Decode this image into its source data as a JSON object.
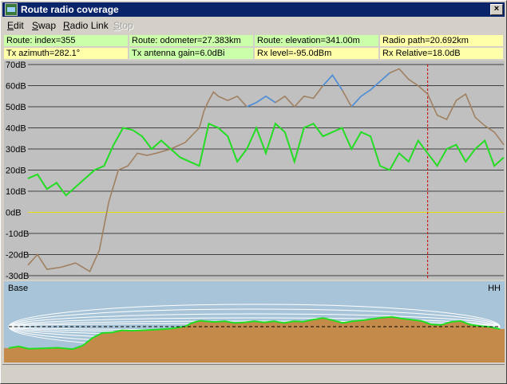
{
  "window": {
    "title": "Route radio coverage",
    "close_glyph": "×"
  },
  "menu": [
    {
      "pre": "",
      "ul": "E",
      "post": "dit",
      "disabled": false
    },
    {
      "pre": "",
      "ul": "S",
      "post": "wap",
      "disabled": false
    },
    {
      "pre": "",
      "ul": "R",
      "post": "adio Link",
      "disabled": false
    },
    {
      "pre": "",
      "ul": "S",
      "post": "top",
      "disabled": true
    }
  ],
  "info": {
    "index": "Route: index=355",
    "odometer": "Route: odometer=27.383km",
    "elevation": "Route: elevation=341.00m",
    "radio_path": "Radio path=20.692km",
    "tx_azimuth": "Tx azimuth=282.1°",
    "tx_gain": "Tx antenna gain=6.0dBi",
    "rx_level": "Rx level=-95.0dBm",
    "rx_relative": "Rx Relative=18.0dB"
  },
  "chart_data": {
    "type": "line",
    "ylim": [
      -30,
      70
    ],
    "yticks": [
      "70dB",
      "60dB",
      "50dB",
      "40dB",
      "30dB",
      "20dB",
      "10dB",
      "0dB",
      "-10dB",
      "-20dB",
      "-30dB"
    ],
    "zero_line_color": "#e8e000",
    "cursor_x": 0.84,
    "series": [
      {
        "color": "#a08060",
        "highlight_color": "#4a90e0",
        "x": [
          0,
          0.02,
          0.04,
          0.07,
          0.1,
          0.13,
          0.15,
          0.17,
          0.19,
          0.21,
          0.23,
          0.25,
          0.27,
          0.3,
          0.33,
          0.36,
          0.37,
          0.38,
          0.39,
          0.4,
          0.42,
          0.44,
          0.46,
          0.48,
          0.5,
          0.52,
          0.54,
          0.56,
          0.58,
          0.6,
          0.62,
          0.64,
          0.66,
          0.68,
          0.7,
          0.72,
          0.74,
          0.76,
          0.78,
          0.8,
          0.82,
          0.84,
          0.86,
          0.88,
          0.9,
          0.92,
          0.94,
          0.96,
          0.98,
          1.0
        ],
        "y": [
          -25,
          -20,
          -27,
          -26,
          -24,
          -28,
          -18,
          5,
          20,
          22,
          28,
          27,
          28,
          30,
          33,
          40,
          48,
          53,
          57,
          55,
          53,
          55,
          50,
          52,
          55,
          52,
          55,
          50,
          55,
          54,
          60,
          65,
          58,
          50,
          55,
          58,
          62,
          66,
          68,
          63,
          60,
          56,
          46,
          44,
          53,
          56,
          45,
          41,
          38,
          32
        ],
        "highlight_ranges": [
          [
            0.46,
            0.52
          ],
          [
            0.62,
            0.66
          ],
          [
            0.68,
            0.76
          ]
        ]
      },
      {
        "color": "#22dd22",
        "x": [
          0,
          0.02,
          0.04,
          0.06,
          0.08,
          0.1,
          0.12,
          0.14,
          0.16,
          0.18,
          0.2,
          0.22,
          0.24,
          0.26,
          0.28,
          0.3,
          0.32,
          0.34,
          0.36,
          0.38,
          0.4,
          0.42,
          0.44,
          0.46,
          0.48,
          0.5,
          0.52,
          0.54,
          0.56,
          0.58,
          0.6,
          0.62,
          0.64,
          0.66,
          0.68,
          0.7,
          0.72,
          0.74,
          0.76,
          0.78,
          0.8,
          0.82,
          0.84,
          0.86,
          0.88,
          0.9,
          0.92,
          0.94,
          0.96,
          0.98,
          1.0
        ],
        "y": [
          16,
          18,
          11,
          14,
          8,
          12,
          16,
          20,
          22,
          32,
          40,
          39,
          36,
          30,
          34,
          30,
          26,
          24,
          22,
          42,
          40,
          36,
          24,
          30,
          40,
          28,
          42,
          38,
          24,
          40,
          42,
          36,
          38,
          40,
          30,
          38,
          36,
          22,
          20,
          28,
          24,
          34,
          28,
          22,
          30,
          32,
          24,
          30,
          34,
          22,
          26
        ]
      }
    ]
  },
  "profile": {
    "left_label": "Base",
    "right_label": "HH"
  },
  "colors": {
    "info_green": "#ccffaa",
    "info_yellow": "#ffffaa",
    "chart_bg": "#c0c0c0",
    "grid": "#404040",
    "cursor": "#cc0000",
    "sky": "#a8c4d8",
    "terrain": "#c48a4a",
    "los": "#22dd22"
  }
}
